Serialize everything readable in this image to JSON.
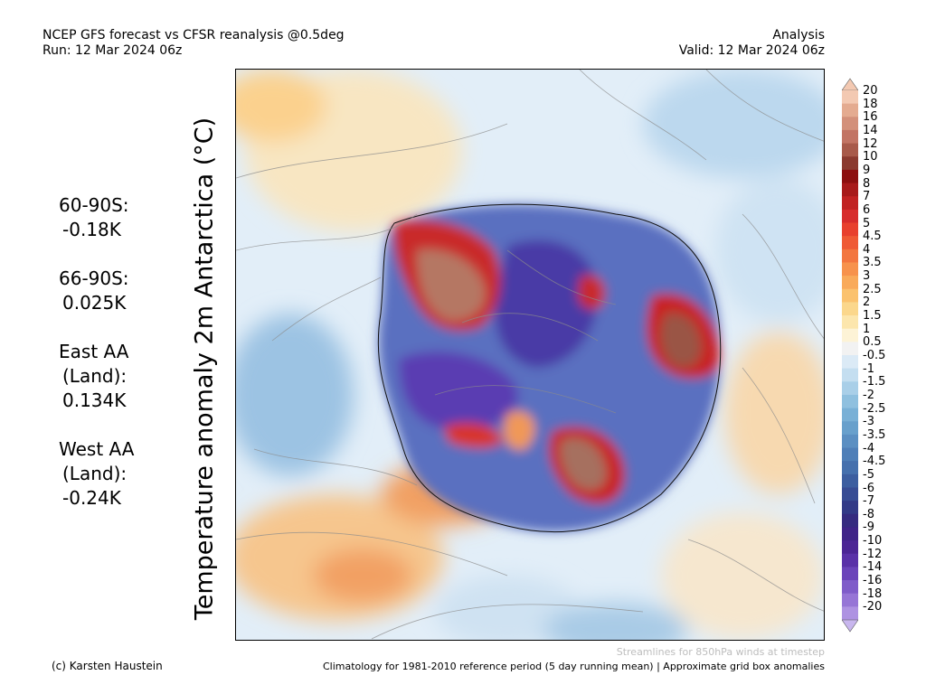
{
  "header": {
    "title_line1": "NCEP GFS forecast vs CFSR reanalysis @0.5deg",
    "title_line2": "Run: 12 Mar 2024 06z",
    "right_line1": "Analysis",
    "right_line2": "Valid: 12 Mar 2024 06z"
  },
  "side_title": "Temperature anomaly 2m Antarctica (°C)",
  "stats": [
    {
      "label": "60-90S:",
      "value": "-0.18K"
    },
    {
      "label": "66-90S:",
      "value": "0.025K"
    },
    {
      "label": "East AA",
      "label2": "(Land):",
      "value": "0.134K"
    },
    {
      "label": "West AA",
      "label2": "(Land):",
      "value": "-0.24K"
    }
  ],
  "colorbar": {
    "labels": [
      "20",
      "18",
      "16",
      "14",
      "12",
      "10",
      "9",
      "8",
      "7",
      "6",
      "5",
      "4.5",
      "4",
      "3.5",
      "3",
      "2.5",
      "2",
      "1.5",
      "1",
      "0.5",
      "-0.5",
      "-1",
      "-1.5",
      "-2",
      "-2.5",
      "-3",
      "-3.5",
      "-4",
      "-4.5",
      "-5",
      "-6",
      "-7",
      "-8",
      "-9",
      "-10",
      "-12",
      "-14",
      "-16",
      "-18",
      "-20"
    ],
    "colors": [
      "#f3c9b2",
      "#e4ab90",
      "#d3907a",
      "#c27464",
      "#a85a4a",
      "#8b3a2f",
      "#8c0f0f",
      "#a81a1a",
      "#c12222",
      "#d72c2c",
      "#e8402e",
      "#ef5a35",
      "#f3763f",
      "#f7924c",
      "#f9aa5a",
      "#fbc26e",
      "#fbd78c",
      "#fce6ad",
      "#fdf3d6",
      "#f2f2f2",
      "#dbeaf6",
      "#c4def0",
      "#a9cfe8",
      "#8fc0df",
      "#79b0d6",
      "#68a0cc",
      "#5b8fc2",
      "#4f7fb8",
      "#4570ad",
      "#3c5ea0",
      "#374c94",
      "#323a87",
      "#352b80",
      "#3f2488",
      "#4c2595",
      "#5a31a8",
      "#6b44ba",
      "#7f5cc9",
      "#9675d6",
      "#ae92e2"
    ],
    "top_arrow": "#f3c9b2",
    "bottom_arrow": "#c8b6ee"
  },
  "footer": {
    "note": "Streamlines for 850hPa winds at timestep",
    "left": "(c) Karsten Haustein",
    "right": "Climatology for 1981-2010 reference period (5 day running mean) | Approximate grid box anomalies"
  }
}
